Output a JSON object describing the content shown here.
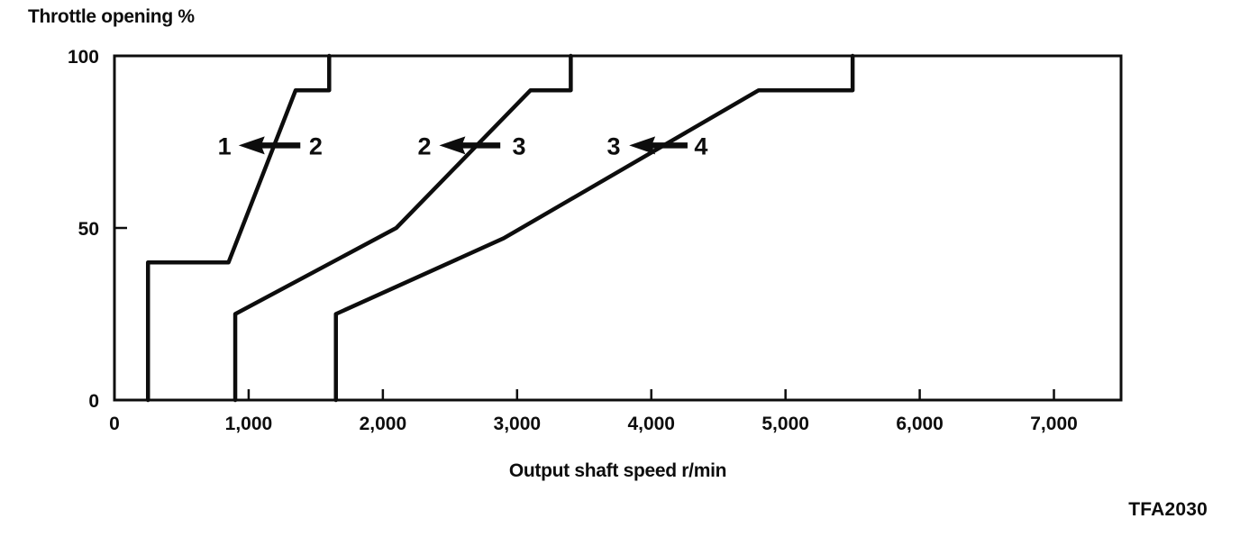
{
  "title": "Throttle opening %",
  "figure_code": "TFA2030",
  "colors": {
    "ink": "#0d0d0d",
    "background": "#ffffff"
  },
  "chart_data": {
    "type": "line",
    "title": "Throttle opening %",
    "xlabel": "Output shaft speed r/min",
    "ylabel": "Throttle opening %",
    "xlim": [
      0,
      7500
    ],
    "ylim": [
      0,
      100
    ],
    "grid": false,
    "frame": true,
    "legend": "none",
    "x_ticks": {
      "values": [
        0,
        1000,
        2000,
        3000,
        4000,
        5000,
        6000,
        7000
      ],
      "labels": [
        "0",
        "1,000",
        "2,000",
        "3,000",
        "4,000",
        "5,000",
        "6,000",
        "7,000"
      ]
    },
    "y_ticks": {
      "values": [
        0,
        50,
        100
      ],
      "labels": [
        "0",
        "50",
        "100"
      ]
    },
    "series": [
      {
        "name": "downshift-2-to-1",
        "label": "1 ← 2",
        "x": [
          250,
          250,
          850,
          1350,
          1600,
          1600
        ],
        "y": [
          0,
          40,
          40,
          90,
          90,
          100
        ]
      },
      {
        "name": "downshift-3-to-2",
        "label": "2 ← 3",
        "x": [
          900,
          900,
          2100,
          3100,
          3400,
          3400
        ],
        "y": [
          0,
          25,
          50,
          90,
          90,
          100
        ]
      },
      {
        "name": "downshift-4-to-3",
        "label": "3 ← 4",
        "x": [
          1650,
          1650,
          2900,
          4800,
          5500,
          5500
        ],
        "y": [
          0,
          25,
          47,
          90,
          90,
          100
        ]
      }
    ],
    "annotations": [
      {
        "left_label": "1",
        "right_label": "2",
        "y": 74,
        "x_left_label": 820,
        "x_arrow_tip": 925,
        "x_arrow_tail": 1385,
        "x_right_label": 1500
      },
      {
        "left_label": "2",
        "right_label": "3",
        "y": 74,
        "x_left_label": 2310,
        "x_arrow_tip": 2420,
        "x_arrow_tail": 2875,
        "x_right_label": 3015
      },
      {
        "left_label": "3",
        "right_label": "4",
        "y": 74,
        "x_left_label": 3720,
        "x_arrow_tip": 3835,
        "x_arrow_tail": 4270,
        "x_right_label": 4370
      }
    ]
  }
}
